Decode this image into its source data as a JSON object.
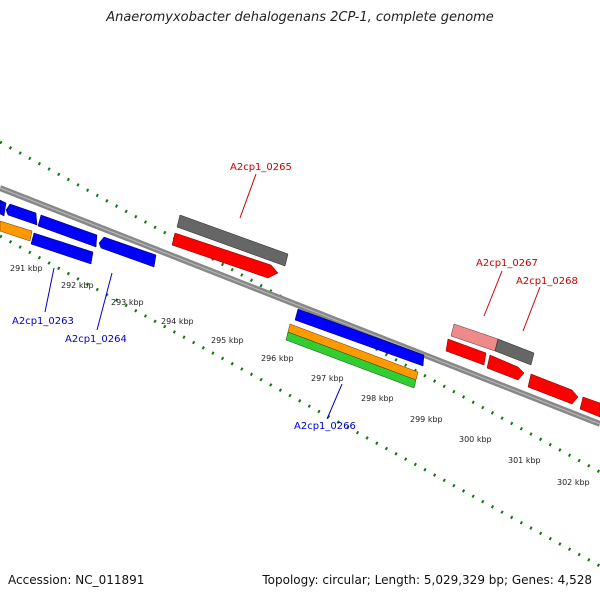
{
  "title": "Anaeromyxobacter dehalogenans 2CP-1, complete genome",
  "footer": {
    "accession": "Accession: NC_011891",
    "summary": "Topology: circular; Length: 5,029,329 bp; Genes: 4,528"
  },
  "colors": {
    "blue": "#0000ff",
    "red": "#ff0000",
    "gray": "#666666",
    "pink": "#ef8a8a",
    "orange": "#ff9900",
    "green": "#33cc33",
    "dots": "#117711",
    "label_blue": "#0000cc",
    "label_red": "#cc0000"
  },
  "kbp_labels": [
    "291 kbp",
    "292 kbp",
    "293 kbp",
    "294 kbp",
    "295 kbp",
    "296 kbp",
    "297 kbp",
    "298 kbp",
    "299 kbp",
    "300 kbp",
    "301 kbp",
    "302 kbp"
  ],
  "gene_labels": {
    "g0263": "A2cp1_0263",
    "g0264": "A2cp1_0264",
    "g0265": "A2cp1_0265",
    "g0266": "A2cp1_0266",
    "g0267": "A2cp1_0267",
    "g0268": "A2cp1_0268"
  }
}
